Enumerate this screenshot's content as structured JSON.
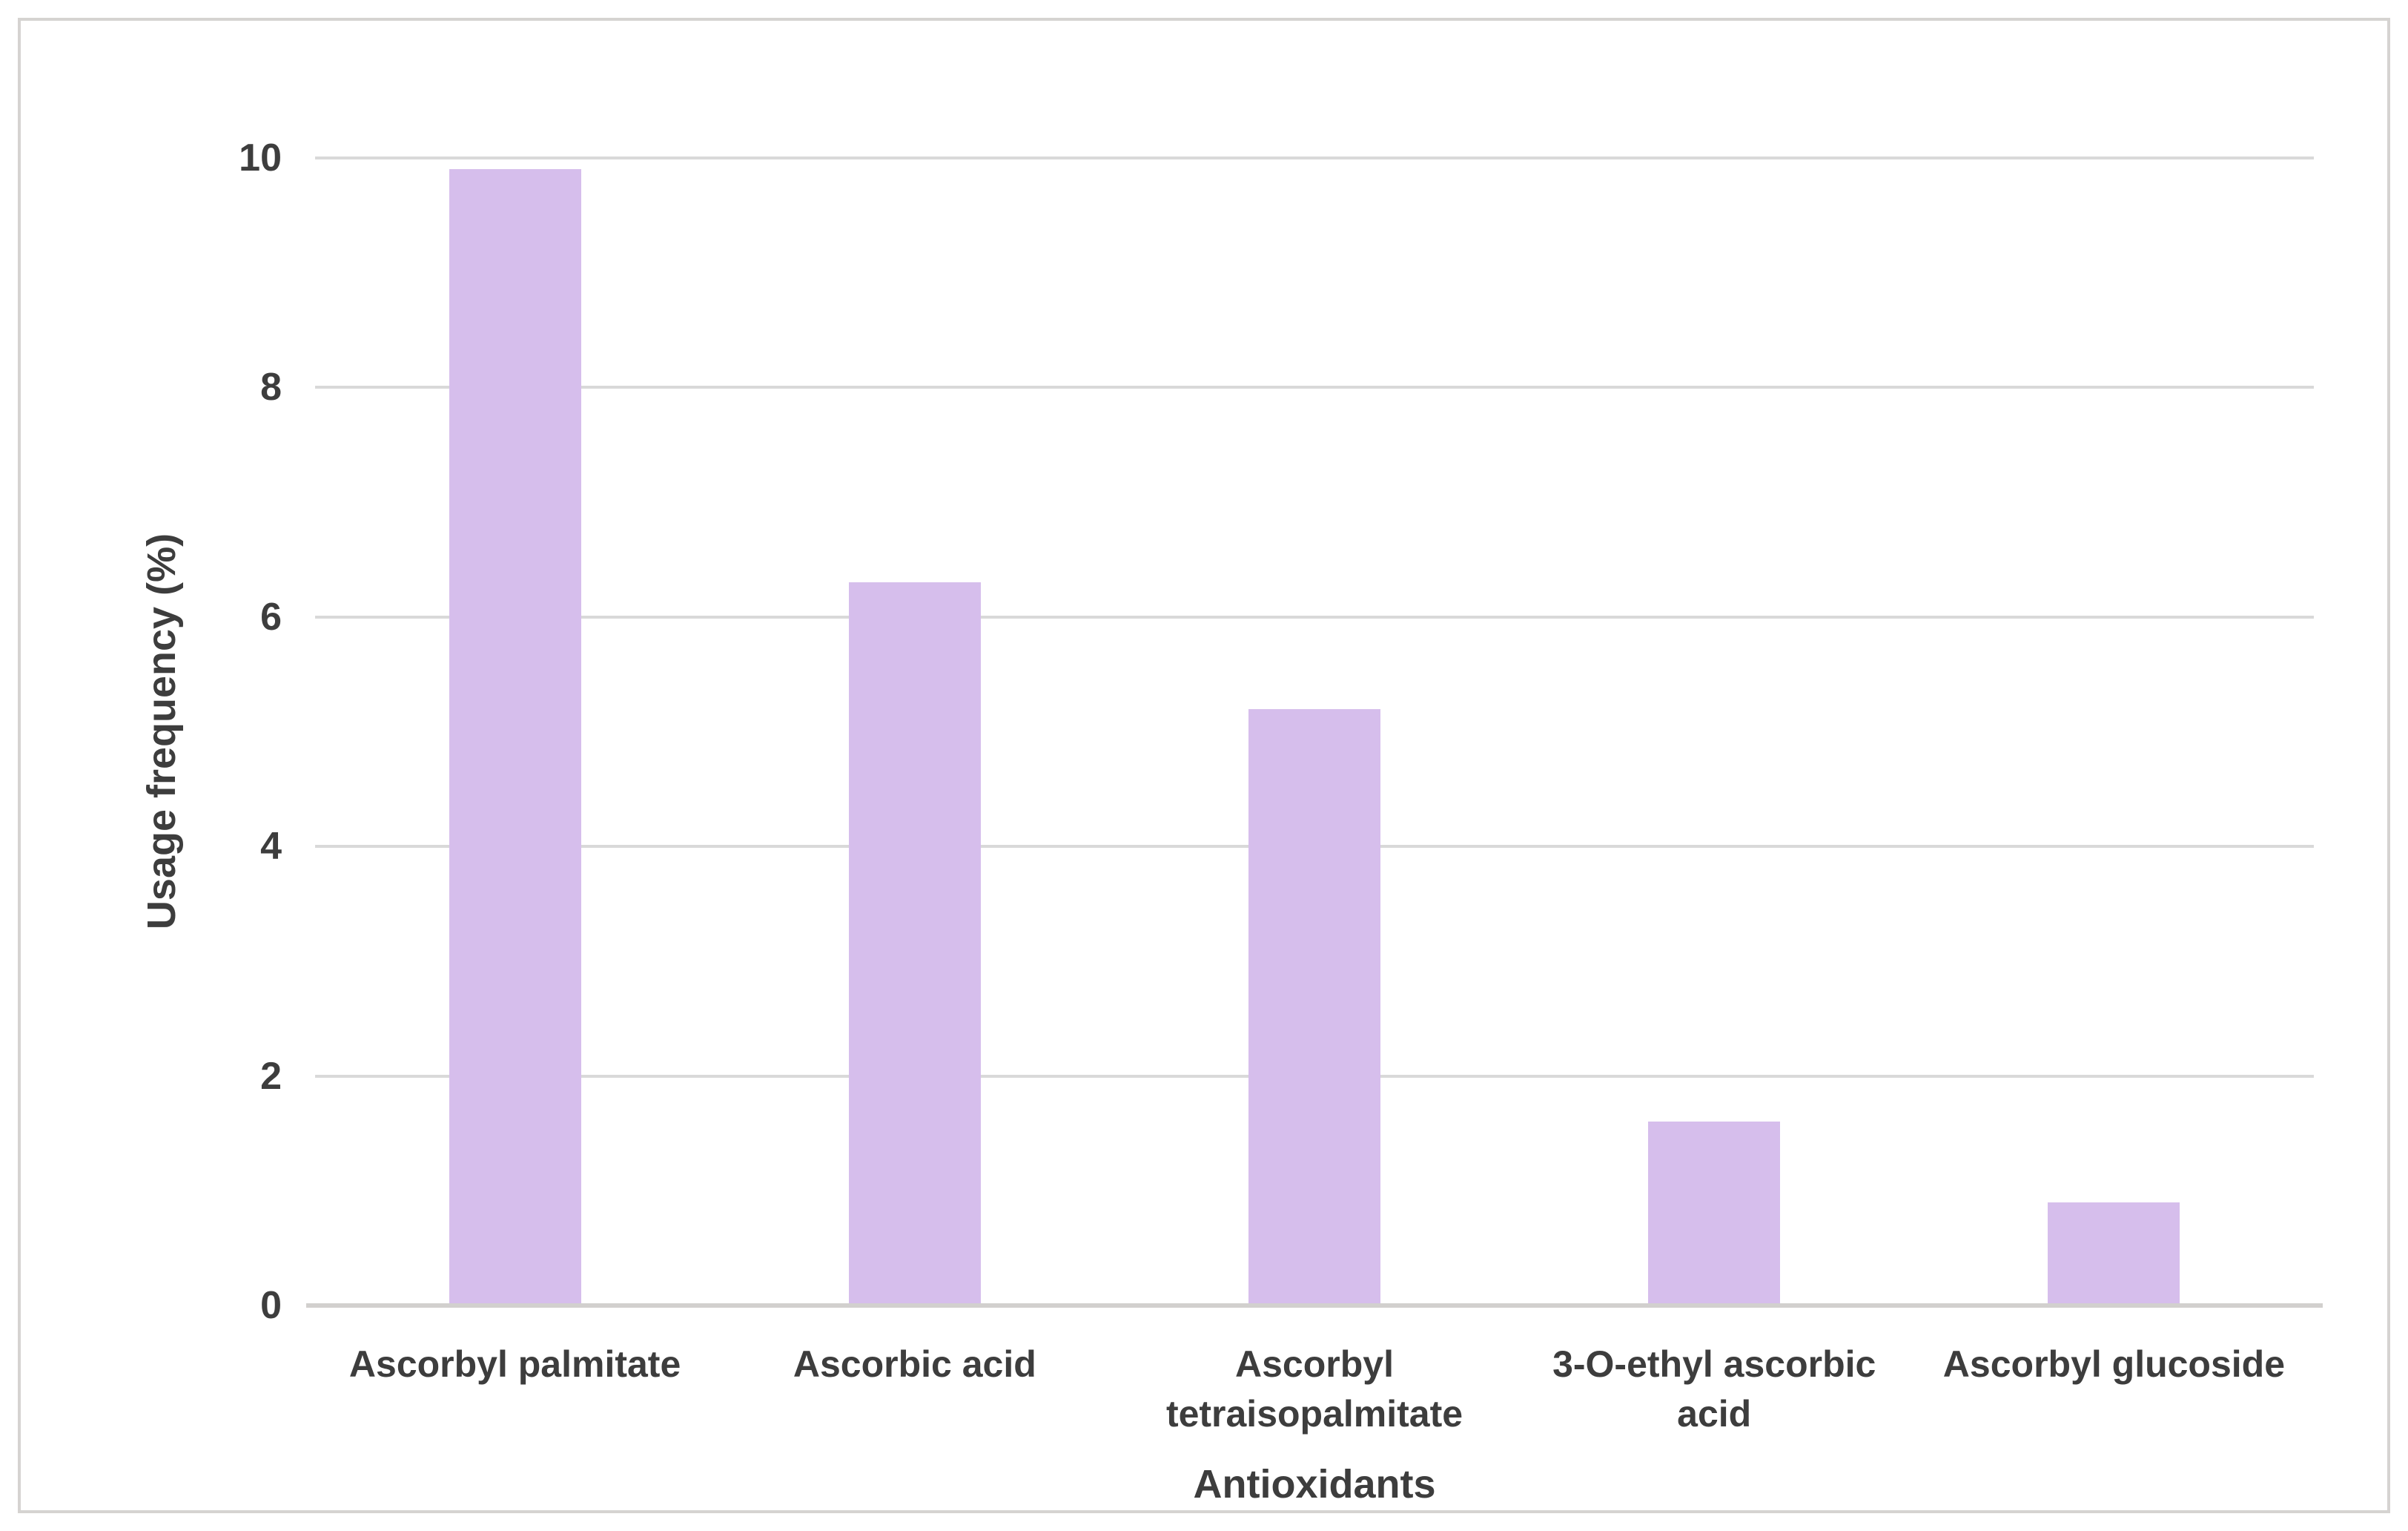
{
  "chart_data": {
    "type": "bar",
    "title": "",
    "categories": [
      "Ascorbyl palmitate",
      "Ascorbic acid",
      "Ascorbyl tetraisopalmitate",
      "3-O-ethyl ascorbic acid",
      "Ascorbyl glucoside"
    ],
    "values": [
      9.9,
      6.3,
      5.2,
      1.6,
      0.9
    ],
    "xlabel": "Antioxidants",
    "ylabel": "Usage frequency (%)",
    "ylim": [
      0,
      10
    ],
    "ytick_step": 2,
    "ytick_labels": [
      "0",
      "2",
      "4",
      "6",
      "8",
      "10"
    ],
    "grid": "horizontal",
    "legend": "none",
    "colors": {
      "bar": "#d6beec",
      "gridline": "#d9d9d9",
      "axis_line": "#d2d0ce",
      "text": "#3d3d3d",
      "frame_border": "#d5d3d1",
      "background": "#ffffff"
    }
  }
}
